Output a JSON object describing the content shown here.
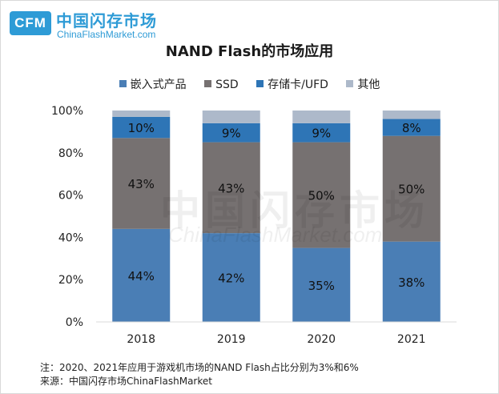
{
  "logo": {
    "mark": "CFM",
    "cn": "中国闪存市场",
    "en": "ChinaFlashMarket.com"
  },
  "watermark": {
    "cn": "中国闪存市场",
    "en": "ChinaFlashMarket.com"
  },
  "notes": {
    "note": "注：2020、2021年应用于游戏机市场的NAND  Flash占比分别为3%和6%",
    "source": "来源：中国闪存市场ChinaFlashMarket"
  },
  "chart_data": {
    "type": "bar",
    "stacked": true,
    "percent_stacked": true,
    "title": "NAND Flash的市场应用",
    "categories": [
      "2018",
      "2019",
      "2020",
      "2021"
    ],
    "series": [
      {
        "name": "嵌入式产品",
        "values": [
          44,
          42,
          35,
          38
        ],
        "labels": [
          "44%",
          "42%",
          "35%",
          "38%"
        ],
        "color": "#4a7eb5"
      },
      {
        "name": "SSD",
        "values": [
          43,
          43,
          50,
          50
        ],
        "labels": [
          "43%",
          "43%",
          "50%",
          "50%"
        ],
        "color": "#767171"
      },
      {
        "name": "存储卡/UFD",
        "values": [
          10,
          9,
          9,
          8
        ],
        "labels": [
          "10%",
          "9%",
          "9%",
          "8%"
        ],
        "color": "#2e75b6"
      },
      {
        "name": "其他",
        "values": [
          3,
          6,
          6,
          4
        ],
        "labels": [
          "",
          "",
          "",
          ""
        ],
        "color": "#adb9ca"
      }
    ],
    "ylim": [
      0,
      100
    ],
    "yticks": [
      "0%",
      "20%",
      "40%",
      "60%",
      "80%",
      "100%"
    ],
    "legend_position": "top",
    "grid": false
  }
}
